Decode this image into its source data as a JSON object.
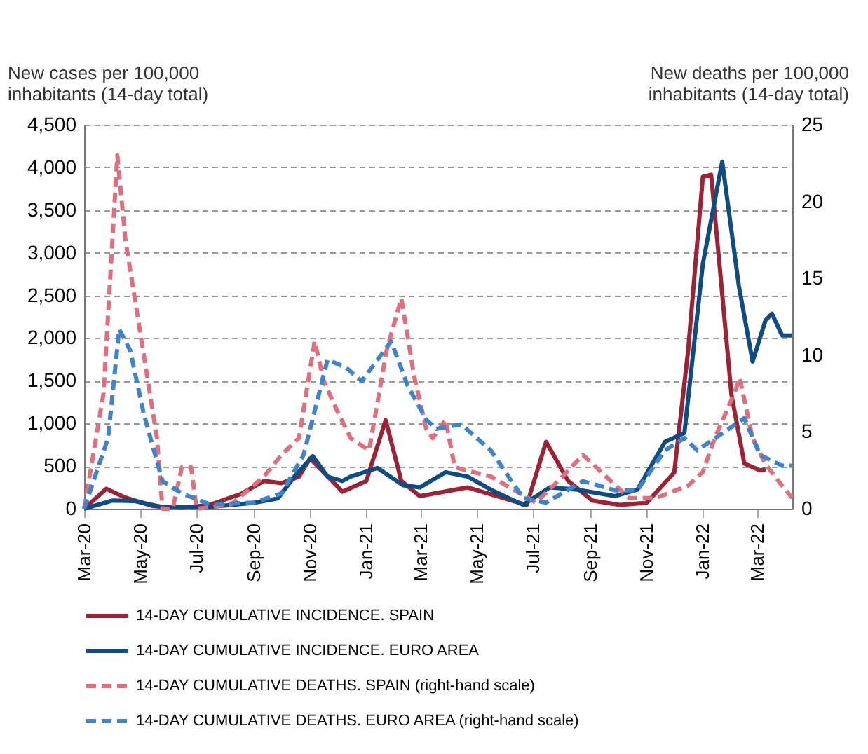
{
  "chart_data": {
    "type": "line",
    "ylabel": "New cases per 100,000\ninhabitants (14-day total)",
    "y2label": "New deaths per 100,000\ninhabitants (14-day total)",
    "xlim": [
      "2020-03-01",
      "2022-04-08"
    ],
    "xticks": [
      {
        "value": "2020-03-01",
        "label": "Mar-20"
      },
      {
        "value": "2020-05-01",
        "label": "May-20"
      },
      {
        "value": "2020-07-01",
        "label": "Jul-20"
      },
      {
        "value": "2020-09-01",
        "label": "Sep-20"
      },
      {
        "value": "2020-11-01",
        "label": "Nov-20"
      },
      {
        "value": "2021-01-01",
        "label": "Jan-21"
      },
      {
        "value": "2021-03-01",
        "label": "Mar-21"
      },
      {
        "value": "2021-05-01",
        "label": "May-21"
      },
      {
        "value": "2021-07-01",
        "label": "Jul-21"
      },
      {
        "value": "2021-09-01",
        "label": "Sep-21"
      },
      {
        "value": "2021-11-01",
        "label": "Nov-21"
      },
      {
        "value": "2022-01-01",
        "label": "Jan-22"
      },
      {
        "value": "2022-03-01",
        "label": "Mar-22"
      }
    ],
    "ylim": [
      0,
      4500
    ],
    "yticks": [
      0,
      {
        "value": 500,
        "label": "500"
      },
      {
        "value": 1000,
        "label": "1,000"
      },
      {
        "value": 1500,
        "label": "1,500"
      },
      {
        "value": 2000,
        "label": "2,000"
      },
      {
        "value": 2500,
        "label": "2,500"
      },
      {
        "value": 3000,
        "label": "3,000"
      },
      {
        "value": 3500,
        "label": "3,500"
      },
      {
        "value": 4000,
        "label": "4,000"
      },
      {
        "value": 4500,
        "label": "4,500"
      }
    ],
    "y2lim": [
      0,
      25
    ],
    "y2ticks": [
      0,
      5,
      10,
      15,
      20,
      25
    ],
    "grid": "y",
    "legend": "bottom",
    "marker": "none",
    "series": [
      {
        "name": "14-DAY CUMULATIVE INCIDENCE. SPAIN",
        "color": "#9b2335",
        "line_style": "solid",
        "x": [
          "2020-03-01",
          "2020-03-25",
          "2020-04-15",
          "2020-05-15",
          "2020-06-15",
          "2020-07-15",
          "2020-08-18",
          "2020-09-12",
          "2020-10-01",
          "2020-10-20",
          "2020-11-01",
          "2020-11-25",
          "2020-12-06",
          "2021-01-01",
          "2021-01-22",
          "2021-02-08",
          "2021-02-28",
          "2021-04-21",
          "2021-06-24",
          "2021-07-15",
          "2021-08-08",
          "2021-09-03",
          "2021-10-03",
          "2021-11-01",
          "2021-12-01",
          "2021-12-16",
          "2022-01-01",
          "2022-01-10",
          "2022-01-19",
          "2022-02-01",
          "2022-02-15",
          "2022-03-04",
          "2022-03-10"
        ],
        "values": [
          0,
          234,
          130,
          30,
          10,
          45,
          173,
          326,
          300,
          377,
          590,
          325,
          200,
          325,
          1038,
          325,
          148,
          250,
          45,
          784,
          325,
          97,
          45,
          70,
          425,
          1850,
          3890,
          3914,
          2870,
          1340,
          530,
          450,
          460
        ]
      },
      {
        "name": "14-DAY CUMULATIVE INCIDENCE. EURO AREA",
        "color": "#0f4c81",
        "line_style": "solid",
        "x": [
          "2020-03-01",
          "2020-04-01",
          "2020-04-25",
          "2020-05-25",
          "2020-07-15",
          "2020-09-01",
          "2020-09-27",
          "2020-10-15",
          "2020-11-04",
          "2020-11-20",
          "2020-12-06",
          "2020-12-15",
          "2021-01-13",
          "2021-02-10",
          "2021-02-28",
          "2021-03-28",
          "2021-04-21",
          "2021-05-16",
          "2021-06-20",
          "2021-07-19",
          "2021-08-18",
          "2021-09-28",
          "2021-10-22",
          "2021-11-21",
          "2021-12-12",
          "2022-01-01",
          "2022-01-22",
          "2022-02-09",
          "2022-02-24",
          "2022-03-10",
          "2022-03-17",
          "2022-03-28",
          "2022-04-08"
        ],
        "values": [
          0,
          97,
          90,
          20,
          20,
          70,
          120,
          377,
          616,
          377,
          325,
          377,
          478,
          275,
          250,
          428,
          377,
          224,
          46,
          250,
          224,
          148,
          224,
          784,
          886,
          2870,
          4067,
          2616,
          1725,
          2209,
          2285,
          2030,
          2030
        ]
      },
      {
        "name": "14-DAY CUMULATIVE DEATHS. SPAIN (right-hand scale)",
        "color": "#e06f7e",
        "line_style": "dashed",
        "axis": "y2",
        "x": [
          "2020-03-01",
          "2020-03-22",
          "2020-04-06",
          "2020-04-15",
          "2020-05-04",
          "2020-05-19",
          "2020-05-25",
          "2020-06-05",
          "2020-06-15",
          "2020-06-25",
          "2020-07-01",
          "2020-08-08",
          "2020-09-12",
          "2020-10-01",
          "2020-10-20",
          "2020-11-06",
          "2020-11-16",
          "2020-12-01",
          "2020-12-15",
          "2021-01-04",
          "2021-01-23",
          "2021-02-08",
          "2021-02-22",
          "2021-03-07",
          "2021-03-14",
          "2021-03-28",
          "2021-04-07",
          "2021-05-16",
          "2021-07-04",
          "2021-07-28",
          "2021-08-24",
          "2021-09-18",
          "2021-10-13",
          "2021-11-11",
          "2021-12-16",
          "2022-01-01",
          "2022-01-14",
          "2022-02-04",
          "2022-02-10",
          "2022-02-24",
          "2022-03-10",
          "2022-03-28",
          "2022-04-08"
        ],
        "values": [
          0,
          7.5,
          23.0,
          17.4,
          10.3,
          4.6,
          0,
          0,
          2.7,
          2.7,
          0,
          0.3,
          2.1,
          3.5,
          4.6,
          10.9,
          8.3,
          6.3,
          4.6,
          3.8,
          10.3,
          13.7,
          8.6,
          5.2,
          4.6,
          5.8,
          2.7,
          2.1,
          0.4,
          1.8,
          3.5,
          2.1,
          0.7,
          0.7,
          1.5,
          2.4,
          4.6,
          7.5,
          8.5,
          4.6,
          2.9,
          1.5,
          0.7
        ]
      },
      {
        "name": "14-DAY CUMULATIVE DEATHS. EURO AREA (right-hand scale)",
        "color": "#3f83c8",
        "line_style": "dashed",
        "axis": "y2",
        "x": [
          "2020-03-01",
          "2020-03-27",
          "2020-04-08",
          "2020-04-20",
          "2020-05-05",
          "2020-05-25",
          "2020-06-15",
          "2020-07-15",
          "2020-09-01",
          "2020-10-01",
          "2020-10-25",
          "2020-11-20",
          "2020-12-10",
          "2020-12-27",
          "2021-01-28",
          "2021-02-15",
          "2021-03-07",
          "2021-03-18",
          "2021-04-14",
          "2021-05-16",
          "2021-06-20",
          "2021-07-15",
          "2021-08-24",
          "2021-09-28",
          "2021-10-22",
          "2021-11-21",
          "2021-12-12",
          "2021-12-26",
          "2022-01-22",
          "2022-02-15",
          "2022-03-04",
          "2022-03-28",
          "2022-04-08"
        ],
        "values": [
          0,
          4.6,
          11.7,
          10.3,
          6.1,
          1.8,
          1.0,
          0.3,
          0.4,
          1.0,
          3.5,
          9.7,
          9.2,
          8.3,
          10.9,
          8.0,
          5.8,
          5.2,
          5.5,
          3.8,
          0.7,
          0.4,
          1.8,
          1.2,
          1.2,
          3.8,
          4.6,
          3.8,
          4.9,
          5.9,
          3.5,
          2.8,
          2.8
        ]
      }
    ]
  }
}
